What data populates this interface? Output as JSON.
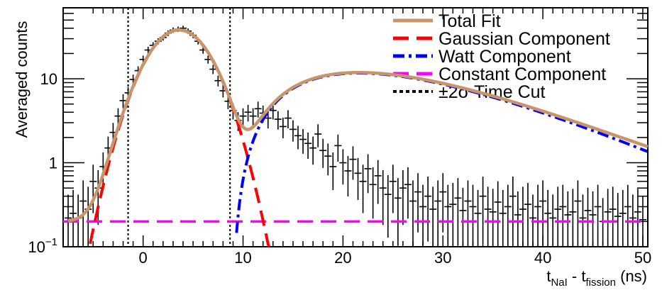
{
  "chart_data": {
    "type": "scatter",
    "title": "",
    "xlabel": {
      "main": "t",
      "sub1": "NaI",
      "mid": " - t",
      "sub2": "fission",
      "unit": " (ns)"
    },
    "ylabel": "Averaged counts",
    "xlim": [
      -8,
      50.5
    ],
    "ylim": [
      0.1,
      70
    ],
    "yscale": "log",
    "x_ticks": [
      0,
      10,
      20,
      30,
      40,
      50
    ],
    "x_tick_labels": [
      "0",
      "10",
      "20",
      "30",
      "40",
      "50"
    ],
    "y_tick_labels": [
      {
        "value": 0.1,
        "base": "10",
        "exp": "−1"
      },
      {
        "value": 1,
        "text": "1"
      },
      {
        "value": 10,
        "text": "10"
      }
    ],
    "legend_position": "top-right",
    "time_cut": [
      -1.5,
      8.7
    ],
    "fit": {
      "gaussian": {
        "amplitude": 38,
        "mean": 3.6,
        "sigma": 2.6
      },
      "watt": {
        "amplitude": 4.2,
        "onset": 8.8,
        "peak": 12.6,
        "decay": 6.4
      },
      "constant": 0.2
    },
    "legend": [
      {
        "label": "Total Fit",
        "color": "#c8956a",
        "style": "solid"
      },
      {
        "label": "Gaussian Component",
        "color": "#ff0000",
        "style": "dashed"
      },
      {
        "label": "Watt Component",
        "color": "#0000ff",
        "style": "dashdot"
      },
      {
        "label": "Constant Component",
        "color": "#ff00ff",
        "style": "dashed"
      },
      {
        "label": "±2σ Time Cut",
        "color": "#000000",
        "style": "dotted"
      }
    ],
    "points": {
      "x": [
        -7.5,
        -7.0,
        -6.5,
        -6.0,
        -5.5,
        -5.0,
        -4.5,
        -4.0,
        -3.5,
        -3.0,
        -2.5,
        -2.0,
        -1.5,
        -1.0,
        -0.5,
        0.0,
        0.5,
        1.0,
        1.5,
        2.0,
        2.5,
        3.0,
        3.5,
        4.0,
        4.5,
        5.0,
        5.5,
        6.0,
        6.5,
        7.0,
        7.5,
        8.0,
        8.5,
        9.0,
        9.5,
        10.0,
        10.5,
        11.0,
        11.5,
        12.0,
        12.5,
        13.0,
        13.5,
        14.0,
        14.5,
        15.0,
        15.5,
        16.0,
        16.5,
        17.0,
        17.5,
        18.0,
        18.5,
        19.0,
        19.5,
        20.0,
        20.5,
        21.0,
        21.5,
        22.0,
        22.5,
        23.0,
        23.5,
        24.0,
        24.5,
        25.0,
        25.5,
        26.0,
        26.5,
        27.0,
        27.5,
        28.0,
        28.5,
        29.0,
        29.5,
        30.0,
        30.5,
        31.0,
        31.5,
        32.0,
        32.5,
        33.0,
        33.5,
        34.0,
        34.5,
        35.0,
        35.5,
        36.0,
        36.5,
        37.0,
        37.5,
        38.0,
        38.5,
        39.0,
        39.5,
        40.0,
        40.5,
        41.0,
        41.5,
        42.0,
        42.5,
        43.0,
        43.5,
        44.0,
        44.5,
        45.0,
        45.5,
        46.0,
        46.5,
        47.0,
        47.5,
        48.0,
        48.5,
        49.0,
        49.5,
        50.0
      ],
      "y": [
        0.22,
        0.25,
        0.22,
        0.35,
        0.28,
        0.6,
        0.5,
        0.9,
        1.5,
        2.3,
        3.6,
        5.5,
        6.8,
        9.8,
        12.5,
        17,
        22,
        25,
        28,
        31,
        35,
        38,
        39,
        40,
        37,
        33,
        28,
        22,
        17,
        13,
        9.5,
        7.2,
        5.4,
        4.2,
        3.2,
        3.6,
        4.0,
        3.6,
        4.4,
        3.9,
        3.4,
        4.2,
        3.3,
        2.7,
        3.4,
        2.5,
        2.1,
        1.9,
        1.7,
        1.5,
        2.2,
        1.4,
        1.2,
        0.9,
        1.6,
        1.0,
        0.8,
        1.1,
        0.75,
        0.6,
        0.85,
        0.55,
        0.7,
        0.5,
        0.42,
        0.6,
        0.38,
        0.5,
        0.55,
        0.35,
        0.45,
        0.3,
        0.4,
        0.28,
        0.35,
        0.45,
        0.3,
        0.32,
        0.38,
        0.27,
        0.35,
        0.3,
        0.25,
        0.4,
        0.28,
        0.26,
        0.34,
        0.25,
        0.3,
        0.4,
        0.24,
        0.28,
        0.32,
        0.22,
        0.3,
        0.35,
        0.25,
        0.22,
        0.28,
        0.3,
        0.24,
        0.26,
        0.35,
        0.22,
        0.27,
        0.24,
        0.3,
        0.2,
        0.26,
        0.28,
        0.23,
        0.25,
        0.3,
        0.22,
        0.26,
        0.21
      ]
    }
  }
}
